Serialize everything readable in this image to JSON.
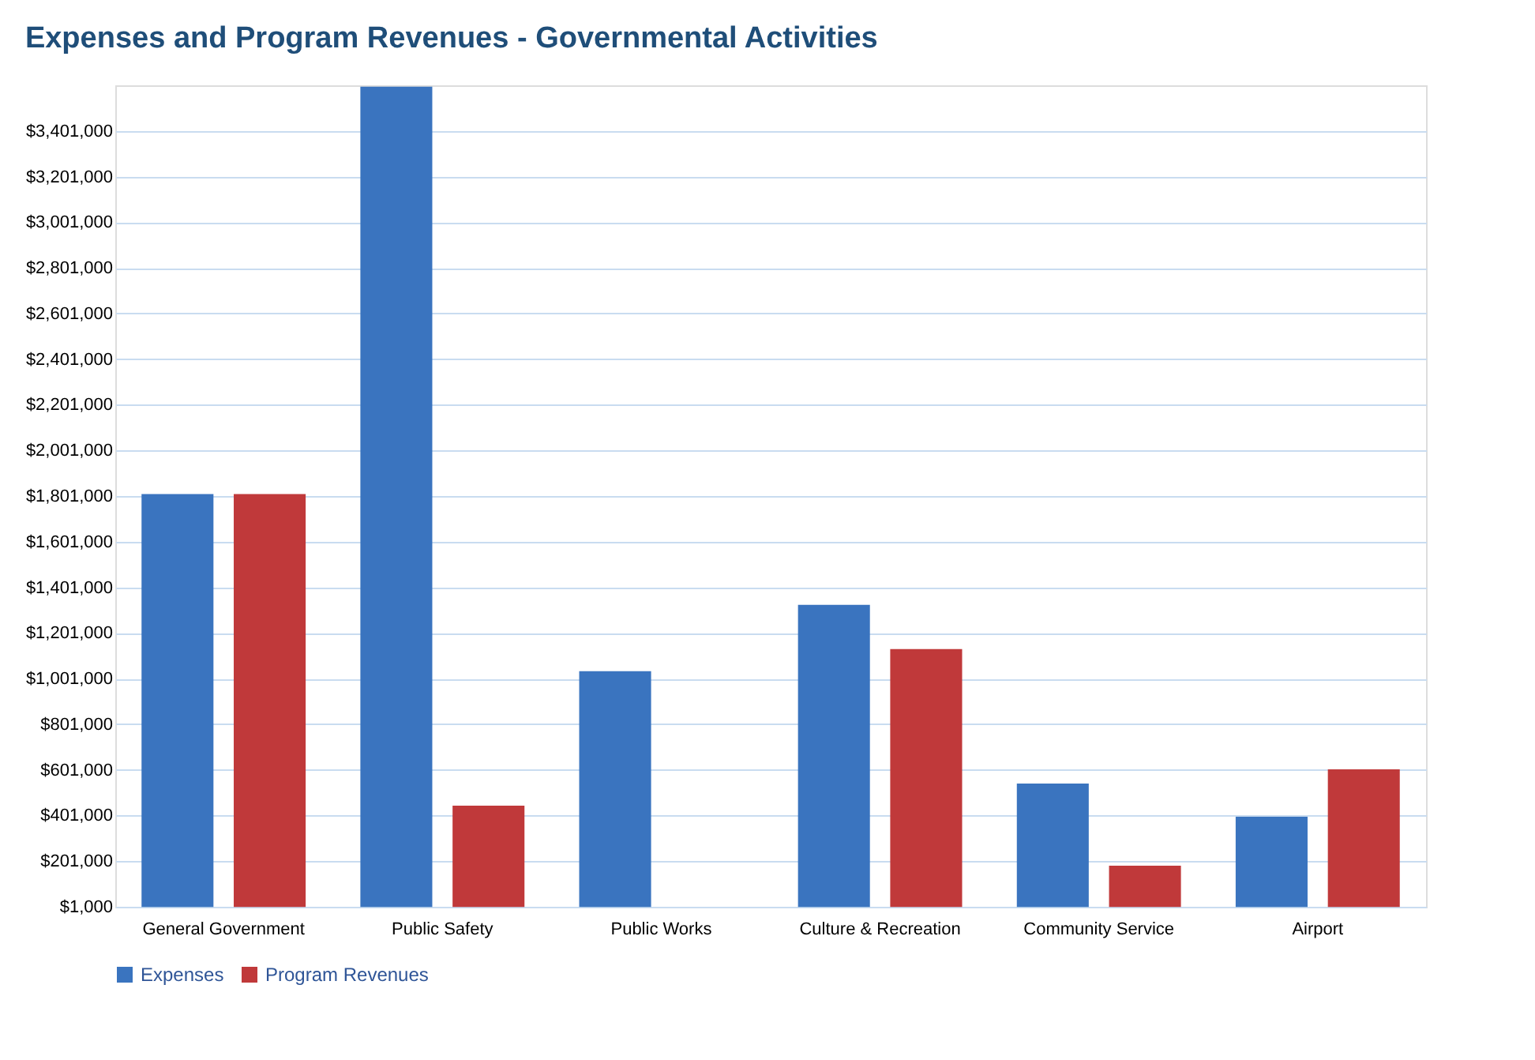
{
  "chart_data": {
    "type": "bar",
    "title": "Expenses and Program Revenues - Governmental Activities",
    "categories": [
      "General Government",
      "Public Safety",
      "Public Works",
      "Culture & Recreation",
      "Community Service",
      "Airport"
    ],
    "series": [
      {
        "name": "Expenses",
        "color": "#3a74bf",
        "values": [
          1810000,
          3595000,
          1033000,
          1324000,
          541000,
          396000
        ]
      },
      {
        "name": "Program Revenues",
        "color": "#c0393a",
        "values": [
          1810000,
          444000,
          null,
          1130000,
          181000,
          603000
        ]
      }
    ],
    "ylim": [
      1000,
      3601000
    ],
    "yticks": [
      {
        "value": 1000,
        "label": "$1,000"
      },
      {
        "value": 201000,
        "label": "$201,000"
      },
      {
        "value": 401000,
        "label": "$401,000"
      },
      {
        "value": 601000,
        "label": "$601,000"
      },
      {
        "value": 801000,
        "label": "$801,000"
      },
      {
        "value": 1001000,
        "label": "$1,001,000"
      },
      {
        "value": 1201000,
        "label": "$1,201,000"
      },
      {
        "value": 1401000,
        "label": "$1,401,000"
      },
      {
        "value": 1601000,
        "label": "$1,601,000"
      },
      {
        "value": 1801000,
        "label": "$1,801,000"
      },
      {
        "value": 2001000,
        "label": "$2,001,000"
      },
      {
        "value": 2201000,
        "label": "$2,201,000"
      },
      {
        "value": 2401000,
        "label": "$2,401,000"
      },
      {
        "value": 2601000,
        "label": "$2,601,000"
      },
      {
        "value": 2801000,
        "label": "$2,801,000"
      },
      {
        "value": 3001000,
        "label": "$3,001,000"
      },
      {
        "value": 3201000,
        "label": "$3,201,000"
      },
      {
        "value": 3401000,
        "label": "$3,401,000"
      }
    ],
    "grid": "y",
    "legend": "bottom"
  }
}
